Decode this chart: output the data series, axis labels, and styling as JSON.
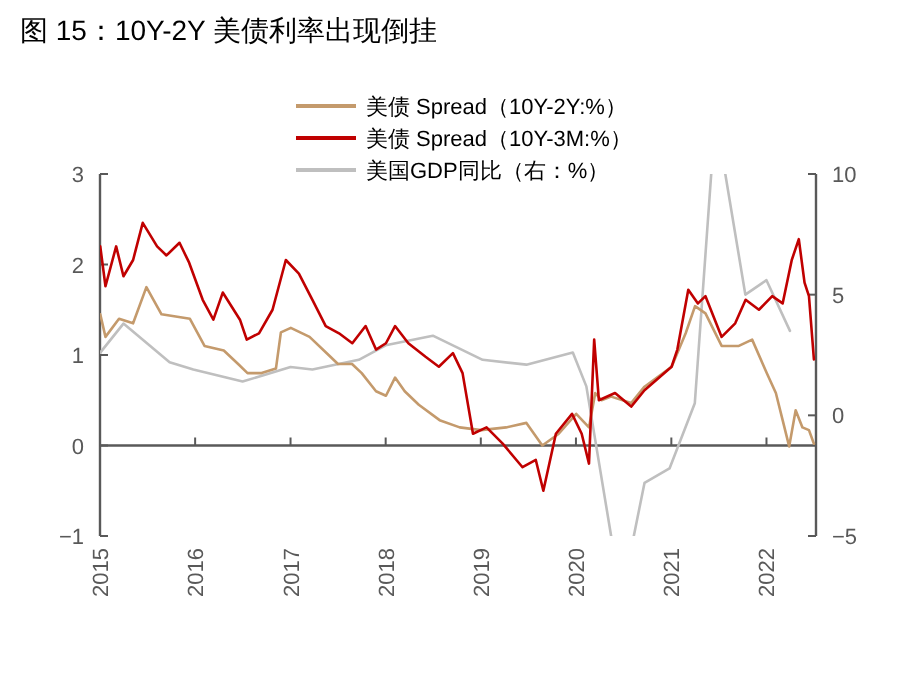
{
  "chart_data": {
    "type": "line",
    "title": "图 15：10Y-2Y 美债利率出现倒挂",
    "xlim": [
      "2015-01-01",
      "2022-07-10"
    ],
    "xticks": [
      {
        "value": "2015-01-01",
        "label": "2015"
      },
      {
        "value": "2016-01-01",
        "label": "2016"
      },
      {
        "value": "2017-01-01",
        "label": "2017"
      },
      {
        "value": "2018-01-01",
        "label": "2018"
      },
      {
        "value": "2019-01-01",
        "label": "2019"
      },
      {
        "value": "2020-01-01",
        "label": "2020"
      },
      {
        "value": "2021-01-01",
        "label": "2021"
      },
      {
        "value": "2022-01-01",
        "label": "2022"
      }
    ],
    "ylim": [
      -1,
      3
    ],
    "yticks": [
      {
        "value": -1,
        "label": "−1"
      },
      0,
      1,
      2,
      3
    ],
    "y2lim": [
      -5,
      10
    ],
    "y2ticks": [
      {
        "value": -5,
        "label": "−5"
      },
      0,
      5,
      10
    ],
    "legend": "top",
    "series": [
      {
        "name": "美债 Spread（10Y-2Y:%）",
        "color": "#c49a6c",
        "x": [
          "2015-01-02",
          "2015-01-22",
          "2015-03-15",
          "2015-05-08",
          "2015-06-28",
          "2015-08-25",
          "2015-12-12",
          "2016-02-06",
          "2016-04-20",
          "2016-06-14",
          "2016-07-20",
          "2016-09-12",
          "2016-11-06",
          "2016-11-25",
          "2017-01-02",
          "2017-03-15",
          "2017-05-27",
          "2017-07-02",
          "2017-08-25",
          "2017-10-01",
          "2017-11-25",
          "2018-01-02",
          "2018-02-06",
          "2018-03-15",
          "2018-05-08",
          "2018-07-27",
          "2018-10-12",
          "2019-01-02",
          "2019-04-08",
          "2019-06-25",
          "2019-08-25",
          "2019-10-27",
          "2020-01-02",
          "2020-02-20",
          "2020-03-15",
          "2020-04-08",
          "2020-05-15",
          "2020-07-31",
          "2020-09-20",
          "2021-01-02",
          "2021-02-25",
          "2021-04-02",
          "2021-05-12",
          "2021-07-13",
          "2021-09-17",
          "2021-11-07",
          "2022-01-02",
          "2022-02-06",
          "2022-03-04",
          "2022-03-29",
          "2022-04-23",
          "2022-05-19",
          "2022-06-13",
          "2022-07-02"
        ],
        "values": [
          1.45,
          1.2,
          1.4,
          1.35,
          1.75,
          1.45,
          1.4,
          1.1,
          1.05,
          0.9,
          0.8,
          0.8,
          0.85,
          1.25,
          1.3,
          1.2,
          1.0,
          0.9,
          0.9,
          0.8,
          0.6,
          0.55,
          0.75,
          0.6,
          0.45,
          0.28,
          0.2,
          0.17,
          0.2,
          0.25,
          0.0,
          0.13,
          0.35,
          0.2,
          0.58,
          0.5,
          0.54,
          0.47,
          0.65,
          0.87,
          1.24,
          1.54,
          1.46,
          1.1,
          1.1,
          1.17,
          0.8,
          0.58,
          0.28,
          -0.01,
          0.39,
          0.2,
          0.17,
          0.02
        ]
      },
      {
        "name": "美债 Spread（10Y-3M:%）",
        "color": "#c00000",
        "x": [
          "2015-01-02",
          "2015-01-22",
          "2015-03-04",
          "2015-04-01",
          "2015-05-08",
          "2015-06-14",
          "2015-08-08",
          "2015-09-13",
          "2015-11-02",
          "2015-12-09",
          "2016-01-30",
          "2016-03-11",
          "2016-04-16",
          "2016-06-21",
          "2016-07-17",
          "2016-09-02",
          "2016-10-24",
          "2016-12-14",
          "2017-02-02",
          "2017-03-26",
          "2017-05-16",
          "2017-07-06",
          "2017-08-26",
          "2017-10-16",
          "2017-11-25",
          "2018-01-02",
          "2018-02-06",
          "2018-03-29",
          "2018-06-03",
          "2018-07-24",
          "2018-09-16",
          "2018-10-23",
          "2018-12-02",
          "2019-01-23",
          "2019-03-26",
          "2019-06-10",
          "2019-07-31",
          "2019-08-29",
          "2019-10-16",
          "2019-12-17",
          "2020-01-23",
          "2020-02-20",
          "2020-03-11",
          "2020-03-29",
          "2020-05-30",
          "2020-07-31",
          "2020-09-20",
          "2021-01-02",
          "2021-01-24",
          "2021-03-07",
          "2021-04-13",
          "2021-05-12",
          "2021-07-13",
          "2021-09-03",
          "2021-10-13",
          "2021-12-03",
          "2022-01-23",
          "2022-03-04",
          "2022-04-08",
          "2022-05-05",
          "2022-05-27",
          "2022-06-13",
          "2022-07-02"
        ],
        "values": [
          2.2,
          1.76,
          2.2,
          1.87,
          2.05,
          2.46,
          2.2,
          2.1,
          2.24,
          2.02,
          1.61,
          1.39,
          1.69,
          1.39,
          1.17,
          1.24,
          1.5,
          2.05,
          1.9,
          1.61,
          1.32,
          1.24,
          1.13,
          1.32,
          1.06,
          1.13,
          1.32,
          1.13,
          0.98,
          0.87,
          1.02,
          0.8,
          0.13,
          0.2,
          0.02,
          -0.24,
          -0.16,
          -0.5,
          0.13,
          0.35,
          0.13,
          -0.2,
          1.17,
          0.5,
          0.58,
          0.43,
          0.61,
          0.87,
          1.06,
          1.72,
          1.57,
          1.65,
          1.2,
          1.35,
          1.61,
          1.5,
          1.65,
          1.57,
          2.05,
          2.28,
          1.8,
          1.65,
          0.95
        ]
      },
      {
        "name": "美国GDP同比（右：%）",
        "color": "#bfbfbf",
        "axis": "y2",
        "x": [
          "2015-01-02",
          "2015-04-01",
          "2015-09-25",
          "2015-12-25",
          "2016-07-01",
          "2017-01-01",
          "2017-03-26",
          "2017-09-20",
          "2018-01-01",
          "2018-07-01",
          "2019-01-08",
          "2019-06-25",
          "2019-12-20",
          "2020-02-10",
          "2020-05-15",
          "2020-06-30",
          "2020-08-10",
          "2020-09-20",
          "2020-12-25",
          "2021-04-01",
          "2021-06-03",
          "2021-06-30",
          "2021-07-27",
          "2021-10-12",
          "2022-01-01",
          "2022-04-01"
        ],
        "values": [
          2.6,
          3.8,
          2.2,
          1.9,
          1.4,
          2.0,
          1.9,
          2.3,
          2.9,
          3.3,
          2.3,
          2.1,
          2.6,
          1.2,
          -5,
          null,
          -5,
          -2.8,
          -2.2,
          0.5,
          10,
          null,
          10,
          5.0,
          5.6,
          3.5
        ]
      }
    ]
  }
}
